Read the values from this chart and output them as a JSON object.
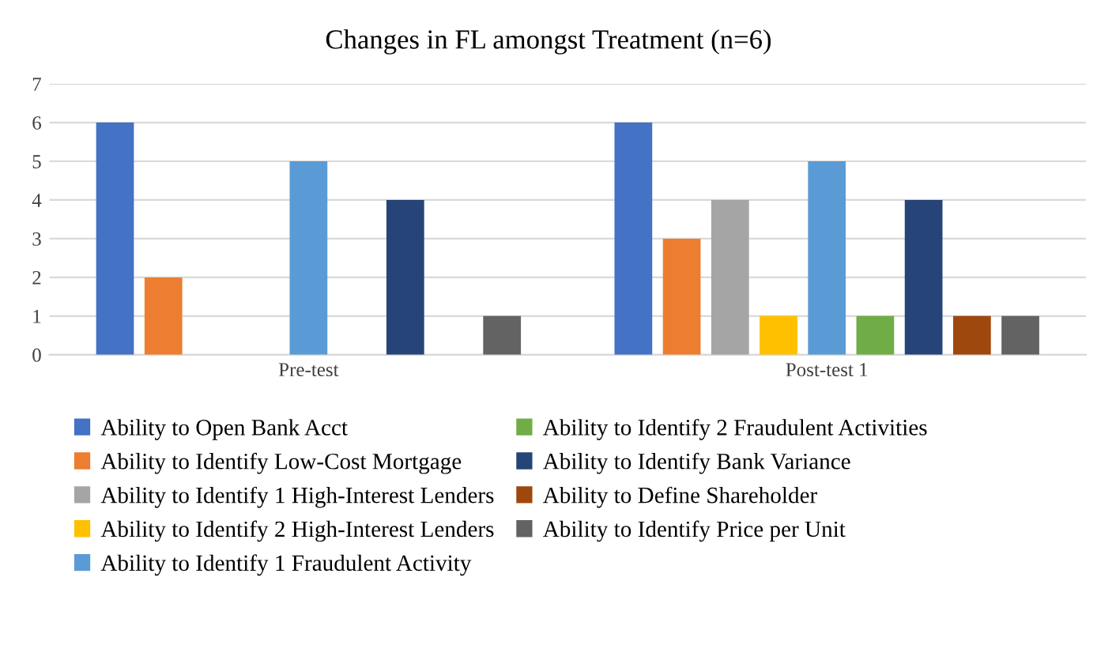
{
  "chart_data": {
    "type": "bar",
    "title": "Changes in FL amongst Treatment (n=6)",
    "categories": [
      "Pre-test",
      "Post-test 1"
    ],
    "series": [
      {
        "name": "Ability to Open Bank Acct",
        "color": "#4472c4",
        "values": [
          6,
          6
        ]
      },
      {
        "name": "Ability to Identify Low-Cost Mortgage",
        "color": "#ed7d31",
        "values": [
          2,
          3
        ]
      },
      {
        "name": "Ability to Identify 1 High-Interest Lenders",
        "color": "#a5a5a5",
        "values": [
          0,
          4
        ]
      },
      {
        "name": "Ability to Identify 2 High-Interest Lenders",
        "color": "#ffc000",
        "values": [
          0,
          1
        ]
      },
      {
        "name": "Ability to Identify 1 Fraudulent Activity",
        "color": "#5b9bd5",
        "values": [
          5,
          5
        ]
      },
      {
        "name": "Ability to Identify 2 Fraudulent Activities",
        "color": "#70ad47",
        "values": [
          0,
          1
        ]
      },
      {
        "name": "Ability to Identify Bank Variance",
        "color": "#264478",
        "values": [
          4,
          4
        ]
      },
      {
        "name": "Ability to Define Shareholder",
        "color": "#9e480e",
        "values": [
          0,
          1
        ]
      },
      {
        "name": "Ability to Identify Price per Unit",
        "color": "#636363",
        "values": [
          1,
          1
        ]
      }
    ],
    "ylim": [
      0,
      7
    ],
    "yticks": [
      0,
      1,
      2,
      3,
      4,
      5,
      6,
      7
    ],
    "grid": "y",
    "legend": "bottom"
  }
}
